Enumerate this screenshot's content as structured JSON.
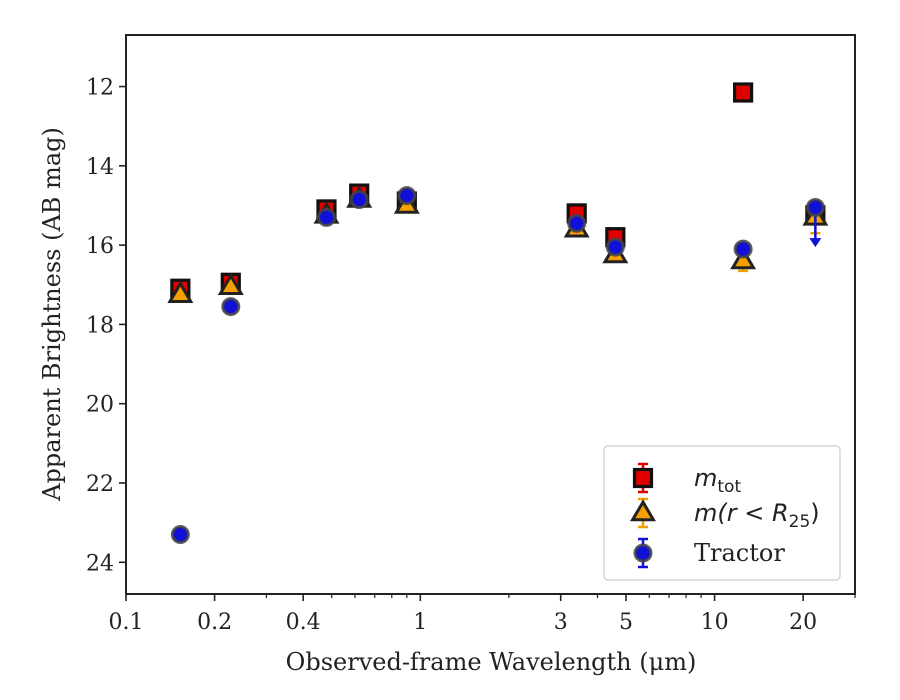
{
  "chart_data": {
    "type": "scatter",
    "xlabel": "Observed-frame Wavelength (μm)",
    "ylabel": "Apparent Brightness (AB mag)",
    "x_scale": "log",
    "xlim": [
      0.1,
      30
    ],
    "ylim": [
      24.8,
      10.7
    ],
    "y_inverted": true,
    "xticks": [
      0.1,
      0.2,
      0.4,
      1,
      3,
      5,
      10,
      20
    ],
    "xtick_labels": [
      "0.1",
      "0.2",
      "0.4",
      "1",
      "3",
      "5",
      "10",
      "20"
    ],
    "yticks": [
      12,
      14,
      16,
      18,
      20,
      22,
      24
    ],
    "ytick_labels": [
      "12",
      "14",
      "16",
      "18",
      "20",
      "22",
      "24"
    ],
    "grid": false,
    "legend_position": "lower-right",
    "series": [
      {
        "name": "m_tot",
        "legend_label": {
          "base": "m",
          "sub": "tot"
        },
        "marker": "square",
        "color": "#e00000",
        "edge": "#111111",
        "points": [
          {
            "x": 0.153,
            "y": 17.1,
            "err": 0.12
          },
          {
            "x": 0.227,
            "y": 16.95,
            "err": 0.1
          },
          {
            "x": 0.48,
            "y": 15.1,
            "err": 0.1
          },
          {
            "x": 0.62,
            "y": 14.7,
            "err": 0.1
          },
          {
            "x": 0.9,
            "y": 14.9,
            "err": 0.1
          },
          {
            "x": 3.4,
            "y": 15.2,
            "err": 0.1
          },
          {
            "x": 4.6,
            "y": 15.8,
            "err": 0.1
          },
          {
            "x": 12.5,
            "y": 12.15,
            "err": 0.05
          },
          {
            "x": 22.0,
            "y": 15.25,
            "err": 0.1
          }
        ]
      },
      {
        "name": "m(r<R25)",
        "legend_label": {
          "prefix": "m(r < R",
          "sub": "25",
          "suffix": ")"
        },
        "marker": "triangle",
        "color": "#f5a000",
        "edge": "#222222",
        "points": [
          {
            "x": 0.153,
            "y": 17.25,
            "err": 0.1
          },
          {
            "x": 0.227,
            "y": 17.05,
            "err": 0.1
          },
          {
            "x": 0.48,
            "y": 15.25,
            "err": 0.1
          },
          {
            "x": 0.62,
            "y": 14.85,
            "err": 0.1
          },
          {
            "x": 0.9,
            "y": 15.0,
            "err": 0.1
          },
          {
            "x": 3.4,
            "y": 15.6,
            "err": 0.1
          },
          {
            "x": 4.6,
            "y": 16.25,
            "err": 0.12
          },
          {
            "x": 12.5,
            "y": 16.4,
            "err": 0.25
          },
          {
            "x": 22.0,
            "y": 15.3,
            "err": 0.4
          }
        ]
      },
      {
        "name": "Tractor",
        "marker": "circle",
        "color": "#1010d8",
        "edge": "#444444",
        "points": [
          {
            "x": 0.153,
            "y": 23.3,
            "err": 0.05
          },
          {
            "x": 0.227,
            "y": 17.55,
            "err": 0.05
          },
          {
            "x": 0.48,
            "y": 15.3,
            "err": 0.1
          },
          {
            "x": 0.62,
            "y": 14.85,
            "err": 0.1
          },
          {
            "x": 0.9,
            "y": 14.75,
            "err": 0.1
          },
          {
            "x": 3.4,
            "y": 15.45,
            "err": 0.1
          },
          {
            "x": 4.6,
            "y": 16.05,
            "err": 0.1
          },
          {
            "x": 12.5,
            "y": 16.1,
            "err": 0.1
          },
          {
            "x": 22.0,
            "y": 15.05,
            "err": 0.1,
            "upper_limit_to": 15.9
          }
        ]
      }
    ]
  }
}
